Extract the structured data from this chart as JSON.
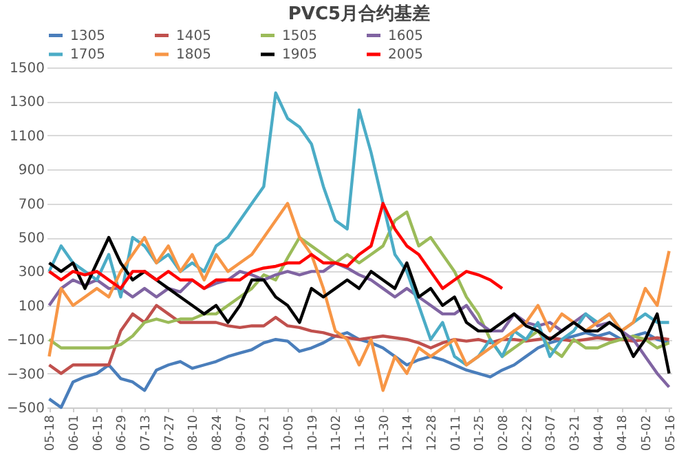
{
  "chart_data": {
    "type": "line",
    "title": "PVC5月合约基差",
    "categories": [
      "05-18",
      null,
      "06-01",
      null,
      "06-15",
      null,
      "06-29",
      null,
      "07-13",
      null,
      "07-27",
      null,
      "08-10",
      null,
      "08-24",
      null,
      "09-07",
      null,
      "09-21",
      null,
      "10-05",
      null,
      "10-19",
      null,
      "11-02",
      null,
      "11-16",
      null,
      "11-30",
      null,
      "12-14",
      null,
      "12-28",
      null,
      "01-11",
      null,
      "01-25",
      null,
      "02-08",
      null,
      "02-22",
      null,
      "03-07",
      null,
      "03-21",
      null,
      "04-04",
      null,
      "04-18",
      null,
      "05-02",
      null,
      "05-16"
    ],
    "series": [
      {
        "name": "1305",
        "color": "#4a7ebb",
        "values": [
          -450,
          -500,
          -350,
          -320,
          -300,
          -250,
          -330,
          -350,
          -400,
          -280,
          -250,
          -230,
          -270,
          -250,
          -230,
          -200,
          -180,
          -160,
          -120,
          -100,
          -110,
          -170,
          -150,
          -120,
          -80,
          -60,
          -100,
          -120,
          -150,
          -200,
          -250,
          -220,
          -200,
          -220,
          -250,
          -280,
          -300,
          -320,
          -280,
          -250,
          -200,
          -150,
          -120,
          -100,
          -80,
          -60,
          -80,
          -60,
          -100,
          -80,
          -60,
          -100,
          -120
        ]
      },
      {
        "name": "1405",
        "color": "#c0504d",
        "values": [
          -250,
          -300,
          -250,
          -250,
          -250,
          -250,
          -50,
          50,
          0,
          100,
          50,
          0,
          0,
          0,
          0,
          -20,
          -30,
          -20,
          -20,
          30,
          -20,
          -30,
          -50,
          -60,
          -80,
          -90,
          -100,
          -90,
          -80,
          -90,
          -100,
          -120,
          -150,
          -120,
          -100,
          -110,
          -100,
          -120,
          -100,
          -100,
          -110,
          -100,
          -90,
          -100,
          -110,
          -100,
          -90,
          -100,
          -100,
          -110,
          -100,
          -90,
          -100
        ]
      },
      {
        "name": "1505",
        "color": "#9bbb59",
        "values": [
          -100,
          -150,
          -150,
          -150,
          -150,
          -150,
          -130,
          -80,
          0,
          20,
          0,
          20,
          20,
          50,
          50,
          100,
          150,
          200,
          280,
          250,
          380,
          500,
          450,
          400,
          350,
          400,
          350,
          400,
          450,
          600,
          650,
          450,
          500,
          400,
          300,
          150,
          50,
          -100,
          -200,
          -150,
          -100,
          -50,
          -150,
          -200,
          -100,
          -150,
          -150,
          -120,
          -100,
          -80,
          -100,
          -150,
          -120
        ]
      },
      {
        "name": "1605",
        "color": "#8064a2",
        "values": [
          100,
          200,
          250,
          220,
          250,
          200,
          200,
          150,
          200,
          150,
          200,
          180,
          250,
          200,
          230,
          250,
          300,
          280,
          250,
          280,
          300,
          280,
          300,
          300,
          350,
          320,
          280,
          250,
          200,
          150,
          200,
          150,
          100,
          50,
          50,
          100,
          0,
          -50,
          -50,
          50,
          0,
          -20,
          0,
          -50,
          0,
          50,
          -20,
          0,
          -50,
          -100,
          -200,
          -300,
          -380
        ]
      },
      {
        "name": "1705",
        "color": "#4bacc6",
        "values": [
          300,
          450,
          350,
          300,
          250,
          400,
          150,
          500,
          450,
          350,
          400,
          300,
          350,
          300,
          450,
          500,
          600,
          700,
          800,
          1350,
          1200,
          1150,
          1050,
          800,
          600,
          550,
          1250,
          1000,
          700,
          400,
          300,
          100,
          -100,
          0,
          -200,
          -250,
          -200,
          -100,
          -200,
          -50,
          -100,
          0,
          -200,
          -100,
          -50,
          50,
          0,
          50,
          -50,
          0,
          50,
          0,
          0
        ]
      },
      {
        "name": "1805",
        "color": "#f79646",
        "values": [
          -200,
          200,
          100,
          150,
          200,
          150,
          300,
          400,
          500,
          350,
          450,
          300,
          400,
          250,
          400,
          300,
          350,
          400,
          500,
          600,
          700,
          500,
          400,
          200,
          -50,
          -100,
          -250,
          -100,
          -400,
          -200,
          -300,
          -150,
          -200,
          -150,
          -100,
          -250,
          -200,
          -150,
          -100,
          -50,
          0,
          100,
          -50,
          50,
          0,
          -50,
          0,
          50,
          -50,
          0,
          200,
          100,
          420
        ]
      },
      {
        "name": "1905",
        "color": "#000000",
        "values": [
          350,
          300,
          350,
          200,
          350,
          500,
          350,
          250,
          300,
          250,
          200,
          150,
          100,
          50,
          100,
          0,
          100,
          250,
          250,
          150,
          100,
          0,
          200,
          150,
          200,
          250,
          200,
          300,
          250,
          200,
          350,
          150,
          200,
          100,
          150,
          0,
          -50,
          -50,
          0,
          50,
          -20,
          -50,
          -100,
          -50,
          0,
          -50,
          -50,
          0,
          -50,
          -200,
          -100,
          50,
          -300
        ]
      },
      {
        "name": "2005",
        "color": "#ff0000",
        "values": [
          300,
          250,
          300,
          280,
          300,
          250,
          200,
          300,
          300,
          250,
          300,
          250,
          250,
          200,
          250,
          250,
          250,
          300,
          320,
          330,
          350,
          350,
          400,
          350,
          350,
          330,
          400,
          450,
          700,
          550,
          450,
          400,
          300,
          200,
          250,
          300,
          280,
          250,
          200,
          null,
          null,
          null,
          null,
          null,
          null,
          null,
          null,
          null,
          null,
          null,
          null,
          null,
          null
        ]
      }
    ],
    "ylim": [
      -500,
      1500
    ],
    "yticks": [
      -500,
      -300,
      -100,
      100,
      300,
      500,
      700,
      900,
      1100,
      1300,
      1500
    ],
    "grid": "y",
    "legend": "top"
  }
}
